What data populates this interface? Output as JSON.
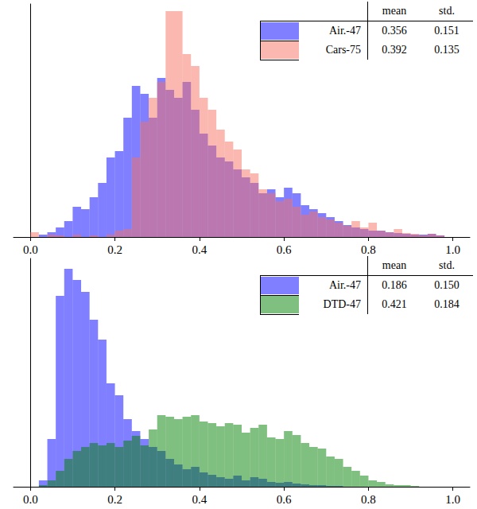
{
  "chart_data": [
    {
      "type": "histogram",
      "bins": [
        0,
        0.02,
        0.04,
        0.06,
        0.08,
        0.1,
        0.12,
        0.14,
        0.16,
        0.18,
        0.2,
        0.22,
        0.24,
        0.26,
        0.28,
        0.3,
        0.32,
        0.34,
        0.36,
        0.38,
        0.4,
        0.42,
        0.44,
        0.46,
        0.48,
        0.5,
        0.52,
        0.54,
        0.56,
        0.58,
        0.6,
        0.62,
        0.64,
        0.66,
        0.68,
        0.7,
        0.72,
        0.74,
        0.76,
        0.78,
        0.8,
        0.82,
        0.84,
        0.86,
        0.88,
        0.9,
        0.92,
        0.94,
        0.96,
        0.98,
        1.0
      ],
      "series": [
        {
          "name": "Air.-47",
          "color": "#0000ff",
          "mean": 0.356,
          "std": 0.151,
          "values": [
            0,
            3,
            6,
            12,
            20,
            38,
            35,
            50,
            68,
            100,
            108,
            150,
            190,
            180,
            150,
            200,
            185,
            175,
            195,
            160,
            130,
            115,
            100,
            95,
            85,
            75,
            68,
            55,
            60,
            50,
            62,
            55,
            40,
            35,
            30,
            25,
            20,
            15,
            12,
            10,
            8,
            8,
            6,
            5,
            4,
            3,
            3,
            4,
            2,
            0
          ]
        },
        {
          "name": "Cars-75",
          "color": "#f77161",
          "mean": 0.392,
          "std": 0.135,
          "values": [
            6,
            0,
            3,
            2,
            0,
            3,
            0,
            2,
            0,
            3,
            8,
            10,
            100,
            145,
            175,
            195,
            284,
            284,
            230,
            215,
            175,
            160,
            135,
            120,
            110,
            85,
            80,
            60,
            55,
            45,
            48,
            38,
            28,
            32,
            25,
            22,
            18,
            14,
            20,
            12,
            18,
            8,
            6,
            10,
            5,
            4,
            2,
            4,
            2,
            0
          ]
        }
      ],
      "table_header": [
        "mean",
        "std."
      ],
      "legend": "upper right",
      "xlim": [
        -0.04,
        1.04
      ],
      "xticks": [
        {
          "value": 0,
          "label": "0.0"
        },
        0.2,
        0.4,
        0.6,
        0.8,
        {
          "value": 1,
          "label": "1.0"
        }
      ],
      "ylim": [
        0,
        293
      ],
      "tick_labels": "x"
    },
    {
      "type": "histogram",
      "bins": [
        0,
        0.02,
        0.04,
        0.06,
        0.08,
        0.1,
        0.12,
        0.14,
        0.16,
        0.18,
        0.2,
        0.22,
        0.24,
        0.26,
        0.28,
        0.3,
        0.32,
        0.34,
        0.36,
        0.38,
        0.4,
        0.42,
        0.44,
        0.46,
        0.48,
        0.5,
        0.52,
        0.54,
        0.56,
        0.58,
        0.6,
        0.62,
        0.64,
        0.66,
        0.68,
        0.7,
        0.72,
        0.74,
        0.76,
        0.78,
        0.8,
        0.82,
        0.84,
        0.86,
        0.88,
        0.9,
        0.92,
        0.94,
        0.96,
        0.98,
        1.0
      ],
      "series": [
        {
          "name": "Air.-47",
          "color": "#0000ff",
          "mean": 0.186,
          "std": 0.15,
          "values": [
            0,
            8,
            60,
            240,
            274,
            260,
            245,
            210,
            185,
            130,
            115,
            85,
            70,
            60,
            50,
            45,
            35,
            28,
            22,
            25,
            18,
            15,
            12,
            10,
            14,
            8,
            12,
            10,
            6,
            5,
            6,
            4,
            3,
            2,
            2,
            1,
            1,
            0,
            0,
            0,
            0,
            0,
            0,
            0,
            0,
            0,
            0,
            0,
            0,
            0
          ]
        },
        {
          "name": "DTD-47",
          "color": "#008000",
          "mean": 0.421,
          "std": 0.184,
          "values": [
            0,
            2,
            8,
            20,
            35,
            45,
            50,
            55,
            52,
            55,
            50,
            58,
            64,
            52,
            72,
            90,
            88,
            85,
            88,
            90,
            82,
            80,
            76,
            80,
            78,
            68,
            74,
            78,
            62,
            60,
            70,
            65,
            55,
            50,
            48,
            38,
            35,
            25,
            20,
            14,
            8,
            6,
            3,
            2,
            2,
            1,
            0,
            0,
            0,
            0
          ]
        }
      ],
      "table_header": [
        "mean",
        "std."
      ],
      "legend": "upper right",
      "xlim": [
        -0.04,
        1.04
      ],
      "xticks": [
        {
          "value": 0,
          "label": "0.0"
        },
        0.2,
        0.4,
        0.6,
        0.8,
        {
          "value": 1,
          "label": "1.0"
        }
      ],
      "ylim": [
        0,
        287
      ],
      "tick_labels": "x"
    }
  ]
}
